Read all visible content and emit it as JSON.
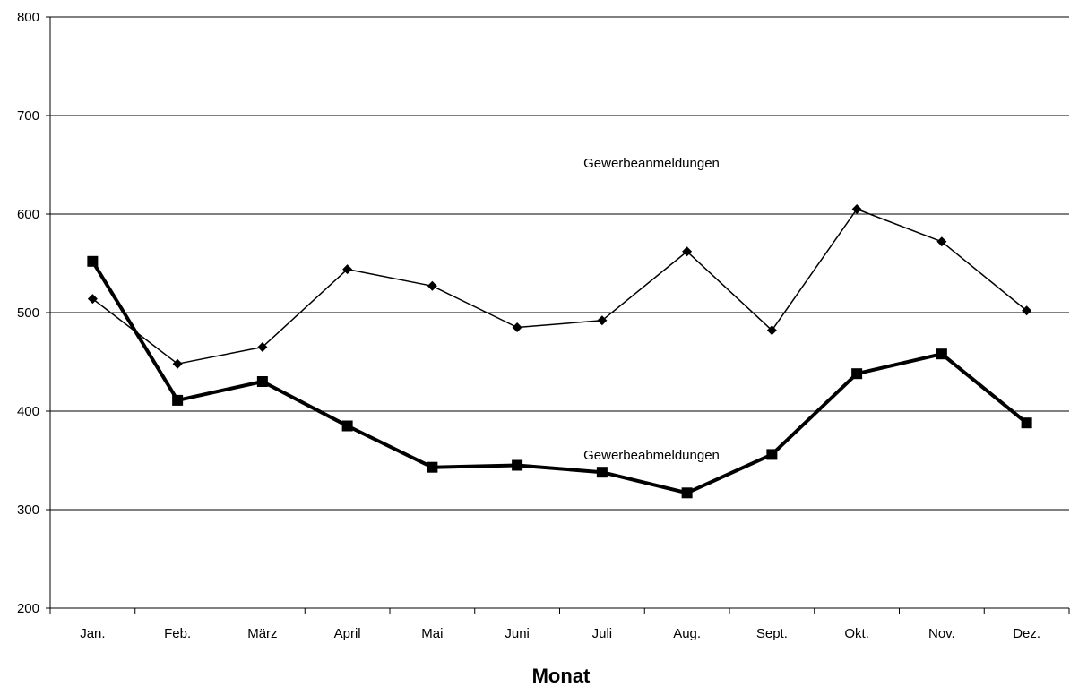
{
  "chart_data": {
    "type": "line",
    "title": "",
    "xlabel": "Monat",
    "ylabel": "",
    "categories": [
      "Jan.",
      "Feb.",
      "März",
      "April",
      "Mai",
      "Juni",
      "Juli",
      "Aug.",
      "Sept.",
      "Okt.",
      "Nov.",
      "Dez."
    ],
    "ylim": [
      200,
      800
    ],
    "yticks": [
      "200",
      "300",
      "400",
      "500",
      "600",
      "700",
      "800"
    ],
    "grid": true,
    "legend": "none",
    "series": [
      {
        "name": "Gewerbeanmeldungen",
        "values": [
          514,
          448,
          465,
          544,
          527,
          485,
          492,
          562,
          482,
          605,
          572,
          502
        ],
        "marker": "diamond",
        "color": "#000000"
      },
      {
        "name": "Gewerbeabmeldungen",
        "values": [
          552,
          411,
          430,
          385,
          343,
          345,
          338,
          317,
          356,
          438,
          458,
          388
        ],
        "marker": "square",
        "color": "#000000"
      }
    ]
  }
}
